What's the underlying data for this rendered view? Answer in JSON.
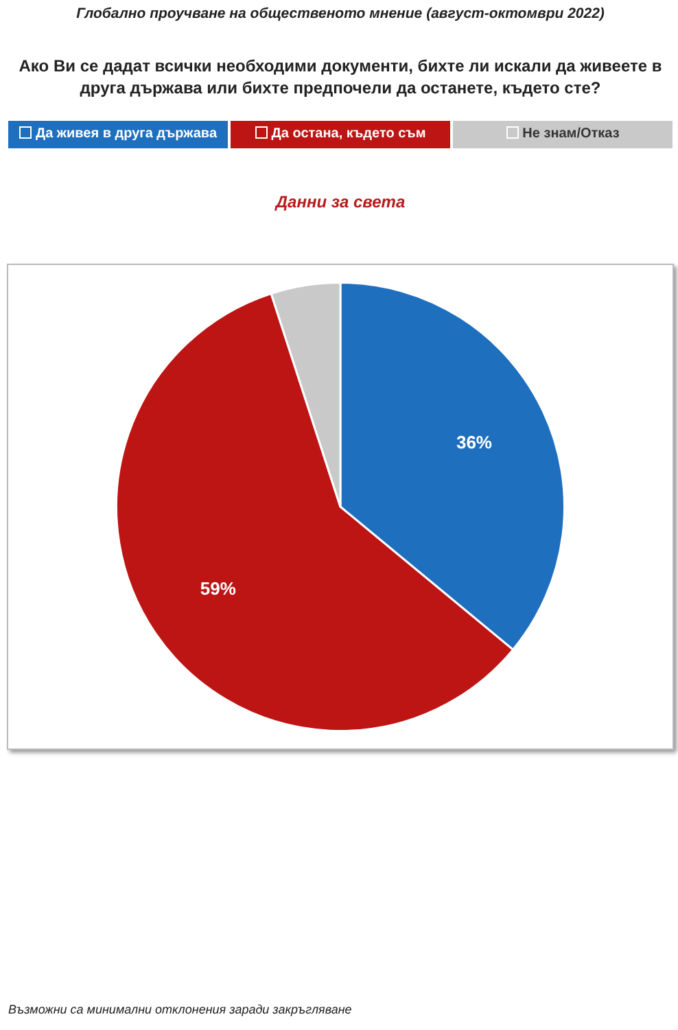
{
  "chart_data": {
    "type": "pie",
    "title": "Ако Ви се дадат всички необходими документи, бихте ли искали да живеете в друга държава или бихте предпочели да останете, където сте?",
    "subtitle": "Данни за света",
    "annotations": [
      "Глобално проучване на общественото мнение (август-октомври 2022)",
      "Възможни са минимални отклонения заради закръгляване"
    ],
    "categories": [
      "Да живея в друга държава",
      "Да остана, където съм",
      "Не знам/Отказ"
    ],
    "values": [
      36,
      59,
      5
    ],
    "colors": [
      "#1f6fbf",
      "#bd1414",
      "#c9c9c9"
    ],
    "value_labels": [
      "36%",
      "59%",
      null
    ],
    "legend": "top"
  }
}
